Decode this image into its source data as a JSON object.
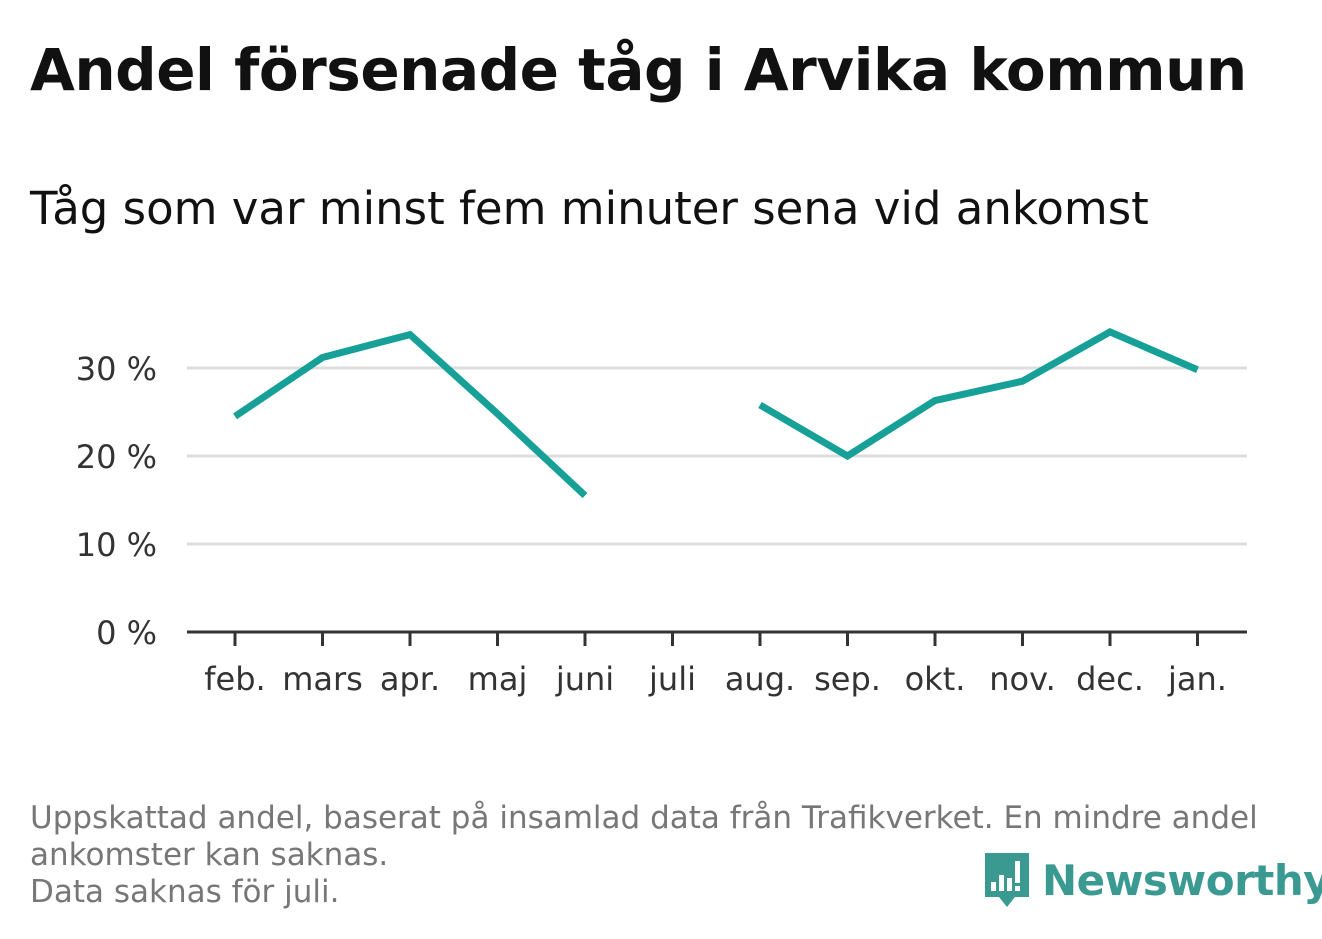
{
  "title": "Andel försenade tåg i Arvika kommun",
  "subtitle": "Tåg som var minst fem minuter sena vid ankomst",
  "footer": {
    "line1": "Uppskattad andel, baserat på insamlad data från Trafikverket. En mindre andel",
    "line2": "ankomster kan saknas.",
    "line3": "Data saknas för juli."
  },
  "logo": {
    "text": "Newsworthy",
    "icon": "newsworthy-logo-icon"
  },
  "colors": {
    "line": "#17a097",
    "grid": "#dddddd",
    "axis": "#333333",
    "logo": "#3a9a92"
  },
  "chart_data": {
    "type": "line",
    "categories": [
      "feb.",
      "mars",
      "apr.",
      "maj",
      "juni",
      "juli",
      "aug.",
      "sep.",
      "okt.",
      "nov.",
      "dec.",
      "jan."
    ],
    "series": [
      {
        "values": [
          24.5,
          31.2,
          33.8,
          24.8,
          15.5,
          null,
          25.8,
          20.0,
          26.3,
          28.5,
          34.1,
          29.8
        ]
      }
    ],
    "ylim": [
      0,
      40
    ],
    "yticks": [
      0,
      10,
      20,
      30
    ],
    "ytick_labels": [
      "0 %",
      "10 %",
      "20 %",
      "30 %"
    ],
    "grid": true,
    "legend": "none"
  }
}
